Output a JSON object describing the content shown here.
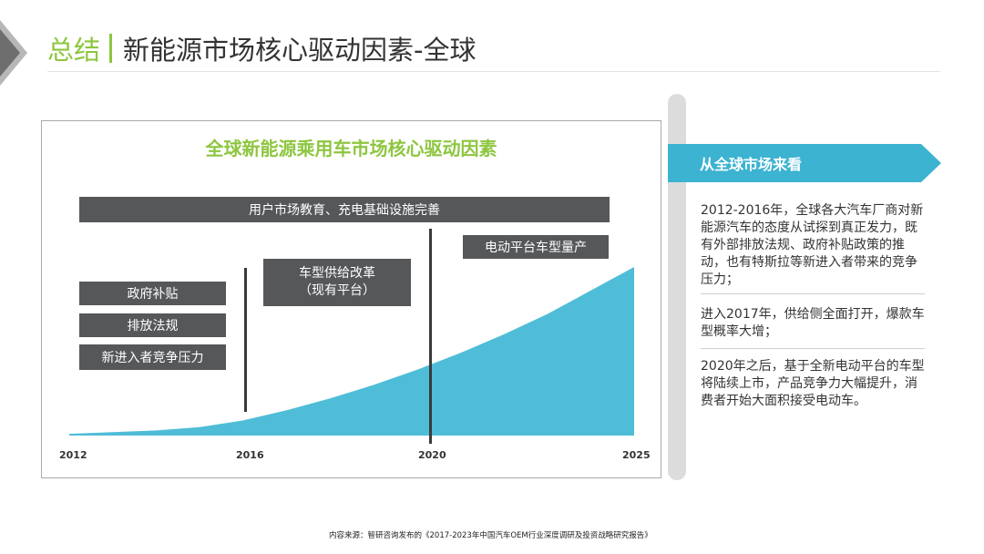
{
  "header": {
    "title_prefix": "总结",
    "title_main": "新能源市场核心驱动因素-全球"
  },
  "chart_data": {
    "type": "area",
    "title": "全球新能源乘用车市场核心驱动因素",
    "x_ticks": [
      "2012",
      "2016",
      "2020",
      "2025"
    ],
    "x": [
      2012,
      2013,
      2014,
      2015,
      2016,
      2017,
      2018,
      2019,
      2020,
      2021,
      2022,
      2023,
      2024,
      2025
    ],
    "y": [
      1,
      2,
      3,
      5,
      9,
      15,
      22,
      30,
      39,
      49,
      60,
      72,
      86,
      100
    ],
    "ylim": [
      0,
      100
    ],
    "grid": false,
    "color": "#4fbdd8",
    "period_markers": [
      "2016",
      "2020"
    ],
    "drivers": {
      "top_banner": "用户市场教育、充电基础设施完善",
      "left_items": [
        "政府补贴",
        "排放法规",
        "新进入者竞争压力"
      ],
      "middle_item": [
        "车型供给改革",
        "（现有平台）"
      ],
      "right_item": "电动平台车型量产"
    }
  },
  "sidebar": {
    "heading": "从全球市场来看",
    "paragraphs": [
      "2012-2016年，全球各大汽车厂商对新能源汽车的态度从试探到真正发力，既有外部排放法规、政府补贴政策的推动，也有特斯拉等新进入者带来的竞争压力；",
      "进入2017年，供给侧全面打开，爆款车型概率大增；",
      "2020年之后，基于全新电动平台的车型将陆续上市，产品竞争力大幅提升，消费者开始大面积接受电动车。"
    ]
  },
  "footer": {
    "source": "内容来源：智研咨询发布的《2017-2023年中国汽车OEM行业深度调研及投资战略研究报告》"
  },
  "colors": {
    "accent_green": "#8dc63f",
    "accent_blue": "#3bb3d1",
    "label_gray": "#555759"
  }
}
